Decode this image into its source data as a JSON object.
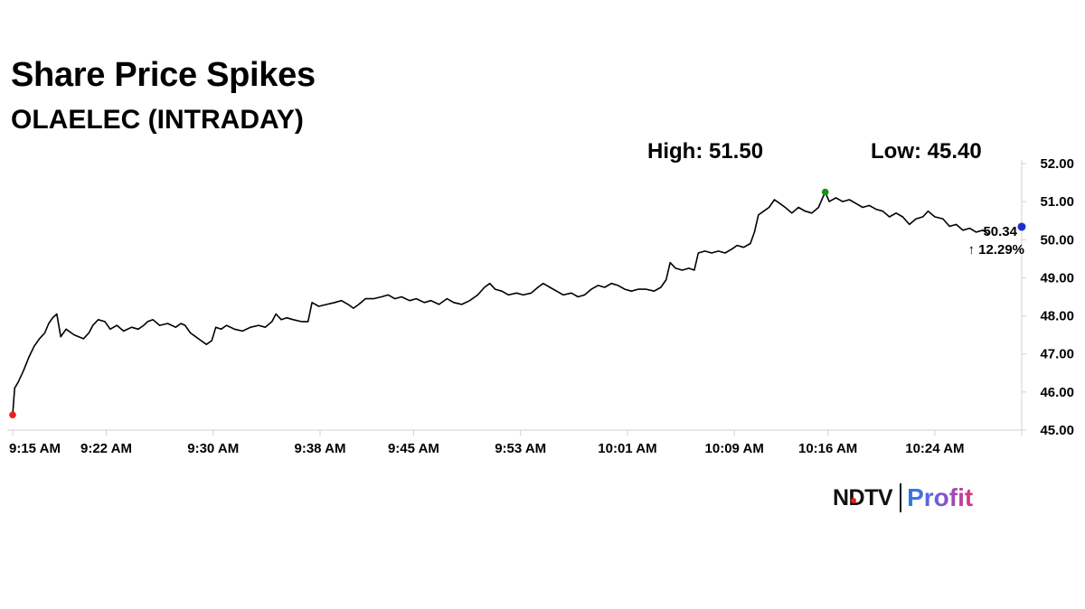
{
  "header": {
    "title": "Share Price Spikes",
    "subtitle": "OLAELEC (INTRADAY)",
    "high_text": "High: 51.50",
    "low_text": "Low: 45.40"
  },
  "brand": {
    "ndtv": "NDTV",
    "profit": "Profit"
  },
  "chart_data": {
    "type": "line",
    "title": "Share Price Spikes",
    "subtitle": "OLAELEC (INTRADAY)",
    "xlabel": "",
    "ylabel": "",
    "x_ticks": [
      "9:15 AM",
      "9:22 AM",
      "9:30 AM",
      "9:38 AM",
      "9:45 AM",
      "9:53 AM",
      "10:01 AM",
      "10:09 AM",
      "10:16 AM",
      "10:24 AM"
    ],
    "x_tick_minutes": [
      0,
      7,
      15,
      23,
      30,
      38,
      46,
      54,
      61,
      69
    ],
    "x_range_minutes": [
      0,
      75.5
    ],
    "y_ticks": [
      "52.00",
      "51.00",
      "50.00",
      "49.00",
      "48.00",
      "47.00",
      "46.00",
      "45.00"
    ],
    "ylim": [
      45,
      52
    ],
    "grid": false,
    "y_axis_position": "right",
    "series": [
      {
        "color": "#000000",
        "points": [
          [
            0,
            45.4
          ],
          [
            0.15,
            46.1
          ],
          [
            0.4,
            46.25
          ],
          [
            0.8,
            46.55
          ],
          [
            1.2,
            46.9
          ],
          [
            1.6,
            47.2
          ],
          [
            2.0,
            47.4
          ],
          [
            2.4,
            47.55
          ],
          [
            2.7,
            47.8
          ],
          [
            3.0,
            47.95
          ],
          [
            3.3,
            48.05
          ],
          [
            3.6,
            47.45
          ],
          [
            4.0,
            47.65
          ],
          [
            4.6,
            47.5
          ],
          [
            5.3,
            47.4
          ],
          [
            5.7,
            47.55
          ],
          [
            6.0,
            47.75
          ],
          [
            6.4,
            47.9
          ],
          [
            6.9,
            47.85
          ],
          [
            7.3,
            47.65
          ],
          [
            7.8,
            47.75
          ],
          [
            8.3,
            47.6
          ],
          [
            8.9,
            47.7
          ],
          [
            9.4,
            47.65
          ],
          [
            9.8,
            47.75
          ],
          [
            10.1,
            47.85
          ],
          [
            10.5,
            47.9
          ],
          [
            11.0,
            47.75
          ],
          [
            11.6,
            47.8
          ],
          [
            12.2,
            47.7
          ],
          [
            12.6,
            47.8
          ],
          [
            12.9,
            47.75
          ],
          [
            13.3,
            47.55
          ],
          [
            13.7,
            47.45
          ],
          [
            14.1,
            47.35
          ],
          [
            14.5,
            47.25
          ],
          [
            14.9,
            47.35
          ],
          [
            15.2,
            47.7
          ],
          [
            15.6,
            47.65
          ],
          [
            16.0,
            47.75
          ],
          [
            16.6,
            47.65
          ],
          [
            17.2,
            47.6
          ],
          [
            17.8,
            47.7
          ],
          [
            18.4,
            47.75
          ],
          [
            18.9,
            47.7
          ],
          [
            19.4,
            47.85
          ],
          [
            19.7,
            48.05
          ],
          [
            20.1,
            47.9
          ],
          [
            20.5,
            47.95
          ],
          [
            21.0,
            47.9
          ],
          [
            21.6,
            47.85
          ],
          [
            22.1,
            47.85
          ],
          [
            22.4,
            48.35
          ],
          [
            22.9,
            48.25
          ],
          [
            23.5,
            48.3
          ],
          [
            24.1,
            48.35
          ],
          [
            24.6,
            48.4
          ],
          [
            25.1,
            48.3
          ],
          [
            25.5,
            48.2
          ],
          [
            25.9,
            48.3
          ],
          [
            26.4,
            48.45
          ],
          [
            27.0,
            48.45
          ],
          [
            27.6,
            48.5
          ],
          [
            28.1,
            48.55
          ],
          [
            28.6,
            48.45
          ],
          [
            29.1,
            48.5
          ],
          [
            29.7,
            48.4
          ],
          [
            30.2,
            48.45
          ],
          [
            30.8,
            48.35
          ],
          [
            31.3,
            48.4
          ],
          [
            31.9,
            48.3
          ],
          [
            32.5,
            48.45
          ],
          [
            33.0,
            48.35
          ],
          [
            33.6,
            48.3
          ],
          [
            34.2,
            48.4
          ],
          [
            34.8,
            48.55
          ],
          [
            35.3,
            48.75
          ],
          [
            35.7,
            48.85
          ],
          [
            36.1,
            48.7
          ],
          [
            36.6,
            48.65
          ],
          [
            37.1,
            48.55
          ],
          [
            37.7,
            48.6
          ],
          [
            38.2,
            48.55
          ],
          [
            38.8,
            48.6
          ],
          [
            39.3,
            48.75
          ],
          [
            39.7,
            48.85
          ],
          [
            40.2,
            48.75
          ],
          [
            40.7,
            48.65
          ],
          [
            41.2,
            48.55
          ],
          [
            41.8,
            48.6
          ],
          [
            42.3,
            48.5
          ],
          [
            42.8,
            48.55
          ],
          [
            43.3,
            48.7
          ],
          [
            43.8,
            48.8
          ],
          [
            44.3,
            48.75
          ],
          [
            44.8,
            48.85
          ],
          [
            45.3,
            48.8
          ],
          [
            45.8,
            48.7
          ],
          [
            46.3,
            48.65
          ],
          [
            46.8,
            48.7
          ],
          [
            47.4,
            48.7
          ],
          [
            48.0,
            48.65
          ],
          [
            48.5,
            48.75
          ],
          [
            48.9,
            48.95
          ],
          [
            49.2,
            49.4
          ],
          [
            49.6,
            49.25
          ],
          [
            50.1,
            49.2
          ],
          [
            50.6,
            49.25
          ],
          [
            51.0,
            49.2
          ],
          [
            51.3,
            49.65
          ],
          [
            51.8,
            49.7
          ],
          [
            52.3,
            49.65
          ],
          [
            52.8,
            49.7
          ],
          [
            53.3,
            49.65
          ],
          [
            53.8,
            49.75
          ],
          [
            54.2,
            49.85
          ],
          [
            54.7,
            49.8
          ],
          [
            55.2,
            49.9
          ],
          [
            55.5,
            50.2
          ],
          [
            55.8,
            50.65
          ],
          [
            56.2,
            50.75
          ],
          [
            56.6,
            50.85
          ],
          [
            57.0,
            51.05
          ],
          [
            57.4,
            50.95
          ],
          [
            57.8,
            50.85
          ],
          [
            58.3,
            50.7
          ],
          [
            58.8,
            50.85
          ],
          [
            59.3,
            50.75
          ],
          [
            59.8,
            50.7
          ],
          [
            60.3,
            50.85
          ],
          [
            60.6,
            51.1
          ],
          [
            60.8,
            51.25
          ],
          [
            61.1,
            51.0
          ],
          [
            61.6,
            51.1
          ],
          [
            62.1,
            51.0
          ],
          [
            62.6,
            51.05
          ],
          [
            63.1,
            50.95
          ],
          [
            63.6,
            50.85
          ],
          [
            64.1,
            50.9
          ],
          [
            64.6,
            50.8
          ],
          [
            65.1,
            50.75
          ],
          [
            65.6,
            50.6
          ],
          [
            66.1,
            50.7
          ],
          [
            66.6,
            50.6
          ],
          [
            67.1,
            50.4
          ],
          [
            67.6,
            50.55
          ],
          [
            68.1,
            50.6
          ],
          [
            68.5,
            50.75
          ],
          [
            69.0,
            50.6
          ],
          [
            69.6,
            50.55
          ],
          [
            70.1,
            50.35
          ],
          [
            70.6,
            50.4
          ],
          [
            71.1,
            50.25
          ],
          [
            71.6,
            50.3
          ],
          [
            72.1,
            50.2
          ],
          [
            72.6,
            50.25
          ],
          [
            73.0,
            50.15
          ]
        ]
      }
    ],
    "markers": [
      {
        "label": "low",
        "x": 0,
        "y": 45.4,
        "color": "#e5231b"
      },
      {
        "label": "high",
        "x": 60.8,
        "y": 51.25,
        "color": "#1a8f1a"
      },
      {
        "label": "last",
        "x": 75.5,
        "y": 50.34,
        "color": "#1f2ecc"
      }
    ],
    "last_price": "50.34",
    "change_text": "↑ 12.29%",
    "change_color": "#1a8a1a"
  }
}
